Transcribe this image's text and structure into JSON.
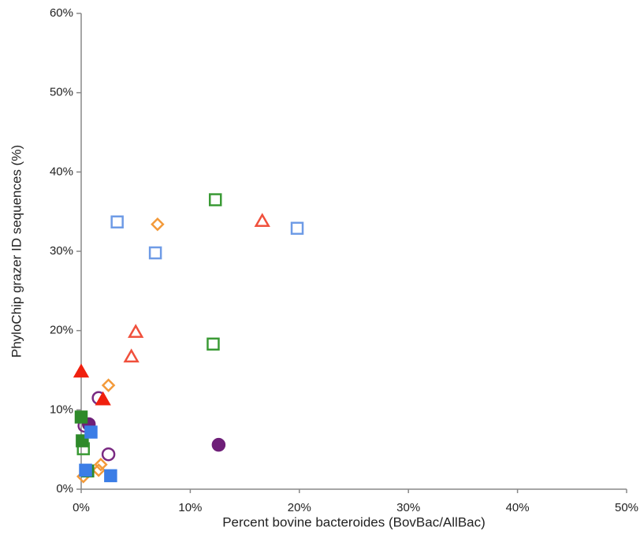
{
  "chart_data": {
    "type": "scatter",
    "x_label": "Percent bovine bacteroides (BovBac/AllBac)",
    "y_label": "PhyloChip grazer ID sequences (%)",
    "xlim": [
      0,
      50
    ],
    "ylim": [
      0,
      60
    ],
    "xticks": [
      {
        "value": 0,
        "label": "0%"
      },
      {
        "value": 10,
        "label": "10%"
      },
      {
        "value": 20,
        "label": "20%"
      },
      {
        "value": 30,
        "label": "30%"
      },
      {
        "value": 40,
        "label": "40%"
      },
      {
        "value": 50,
        "label": "50%"
      }
    ],
    "yticks": [
      {
        "value": 0,
        "label": "0%"
      },
      {
        "value": 10,
        "label": "10%"
      },
      {
        "value": 20,
        "label": "20%"
      },
      {
        "value": 30,
        "label": "30%"
      },
      {
        "value": 40,
        "label": "40%"
      },
      {
        "value": 50,
        "label": "50%"
      },
      {
        "value": 60,
        "label": "60%"
      }
    ],
    "grid": false,
    "series": [
      {
        "color": "#6e9be6",
        "marker": "square",
        "filled": false,
        "x": [
          3.3,
          6.8,
          19.8
        ],
        "values": [
          33.7,
          29.8,
          32.9
        ]
      },
      {
        "color": "#3a9a35",
        "marker": "square",
        "filled": false,
        "x": [
          12.3,
          12.1,
          0.2
        ],
        "values": [
          36.5,
          18.3,
          5.1
        ]
      },
      {
        "color": "#f0503c",
        "marker": "triangle",
        "filled": false,
        "x": [
          16.6,
          5.0,
          4.6
        ],
        "values": [
          33.8,
          19.8,
          16.7
        ]
      },
      {
        "color": "#f39a3a",
        "marker": "diamond",
        "filled": false,
        "x": [
          7.0,
          2.5,
          1.8,
          1.6,
          0.2
        ],
        "values": [
          33.4,
          13.1,
          3.1,
          2.4,
          1.6
        ]
      },
      {
        "color": "#7a2a82",
        "marker": "circle",
        "filled": false,
        "x": [
          1.6,
          2.5,
          0.3
        ],
        "values": [
          11.5,
          4.4,
          8.0
        ]
      },
      {
        "color": "#6e1f78",
        "marker": "circle",
        "filled": true,
        "x": [
          12.6,
          0.7
        ],
        "values": [
          5.6,
          8.2
        ]
      },
      {
        "color": "#f0200e",
        "marker": "triangle",
        "filled": true,
        "x": [
          0.0,
          2.0
        ],
        "values": [
          14.8,
          11.3
        ]
      },
      {
        "color": "#2e8a2a",
        "marker": "square",
        "filled": true,
        "x": [
          0.0,
          0.1,
          0.6
        ],
        "values": [
          9.1,
          6.1,
          2.3
        ]
      },
      {
        "color": "#3b7de6",
        "marker": "square",
        "filled": true,
        "x": [
          0.9,
          2.7,
          0.4
        ],
        "values": [
          7.2,
          1.7,
          2.4
        ]
      }
    ]
  }
}
